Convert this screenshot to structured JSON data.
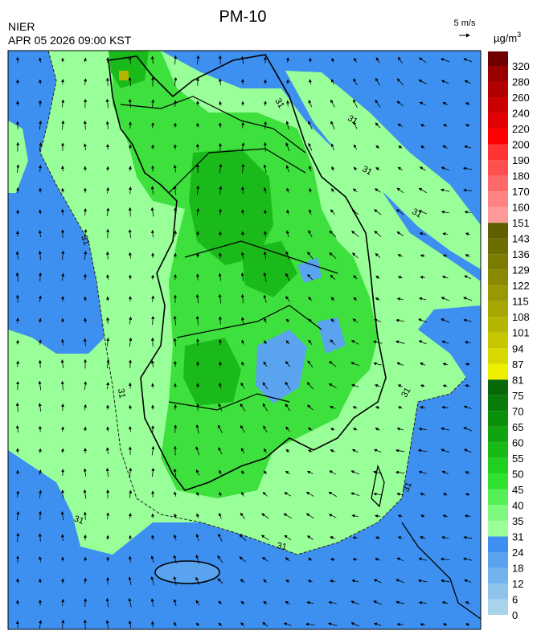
{
  "header": {
    "title": "PM-10",
    "agency": "NIER",
    "datetime": "APR 05 2026 09:00 KST",
    "wind_reference": "5 m/s"
  },
  "legend": {
    "unit": "µg/m",
    "unit_power": "3",
    "levels": [
      0,
      6,
      12,
      18,
      24,
      31,
      35,
      40,
      45,
      50,
      55,
      60,
      65,
      70,
      75,
      81,
      87,
      94,
      101,
      108,
      115,
      122,
      129,
      136,
      143,
      151,
      160,
      170,
      180,
      190,
      200,
      220,
      240,
      260,
      280,
      320
    ],
    "colors": [
      "#a9d3ea",
      "#8ec4ec",
      "#72b3ee",
      "#5aa3ef",
      "#3d8ff0",
      "#99ff99",
      "#7ef97e",
      "#55f055",
      "#2fe22f",
      "#1fd01f",
      "#16bb16",
      "#10a410",
      "#0b900b",
      "#087c08",
      "#066806",
      "#eeee00",
      "#d8d800",
      "#c6c600",
      "#b5b500",
      "#a6a600",
      "#989800",
      "#8a8a00",
      "#7c7c00",
      "#6e6e00",
      "#606000",
      "#ff9a9a",
      "#ff8282",
      "#ff6868",
      "#ff4f4f",
      "#ff3535",
      "#ff0000",
      "#e20000",
      "#ca0000",
      "#b20000",
      "#9a0000",
      "#700000"
    ]
  },
  "map": {
    "contour_labels": [
      31,
      31,
      31,
      31,
      31,
      31,
      31,
      31,
      31,
      31
    ]
  }
}
